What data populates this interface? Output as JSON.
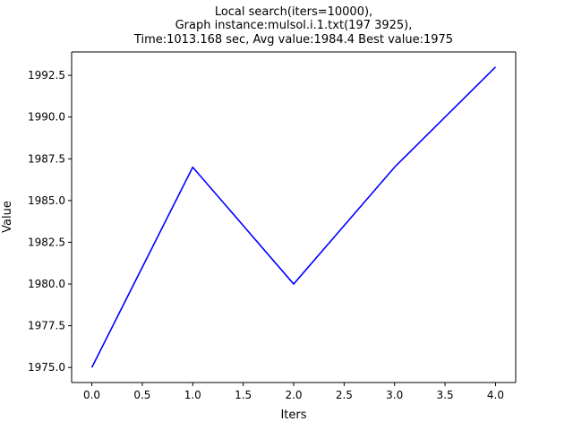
{
  "chart_data": {
    "type": "line",
    "title": [
      "Local search(iters=10000),",
      "Graph instance:mulsol.i.1.txt(197 3925),",
      "Time:1013.168 sec, Avg value:1984.4 Best value:1975"
    ],
    "xlabel": "Iters",
    "ylabel": "Value",
    "x": [
      0,
      1,
      2,
      3,
      4
    ],
    "series": [
      {
        "values": [
          1975,
          1987,
          1980,
          1987,
          1993
        ],
        "color": "#0000ff"
      }
    ],
    "xlim": [
      -0.2,
      4.2
    ],
    "ylim": [
      1974.1,
      1993.9
    ],
    "xticks": [
      0.0,
      0.5,
      1.0,
      1.5,
      2.0,
      2.5,
      3.0,
      3.5,
      4.0
    ],
    "xtick_labels": [
      "0.0",
      "0.5",
      "1.0",
      "1.5",
      "2.0",
      "2.5",
      "3.0",
      "3.5",
      "4.0"
    ],
    "yticks": [
      1975.0,
      1977.5,
      1980.0,
      1982.5,
      1985.0,
      1987.5,
      1990.0,
      1992.5
    ],
    "ytick_labels": [
      "1975.0",
      "1977.5",
      "1980.0",
      "1982.5",
      "1985.0",
      "1987.5",
      "1990.0",
      "1992.5"
    ],
    "grid": false,
    "legend": "none"
  }
}
